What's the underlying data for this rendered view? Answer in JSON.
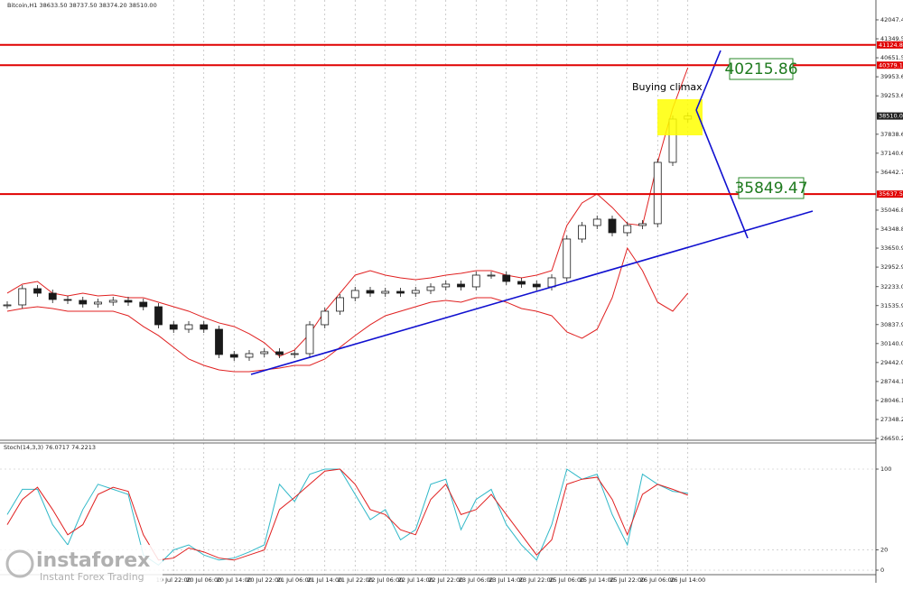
{
  "header": "Bitcoin,H1 38633.50 38737.50 38374.20 38510.00",
  "logo": {
    "name": "instaforex",
    "tagline": "Instant Forex Trading"
  },
  "chart_data": [
    {
      "type": "candlestick",
      "categories": [
        null,
        null,
        null,
        null,
        null,
        null,
        null,
        null,
        null,
        null,
        null,
        "19 Jul 22:00",
        null,
        "20 Jul 06:00",
        null,
        "20 Jul 14:00",
        null,
        "20 Jul 22:00",
        null,
        "21 Jul 06:00",
        null,
        "21 Jul 14:00",
        null,
        "21 Jul 22:00",
        null,
        "22 Jul 06:00",
        null,
        "22 Jul 14:00",
        null,
        "22 Jul 22:00",
        null,
        "23 Jul 06:00",
        null,
        "23 Jul 14:00",
        null,
        "23 Jul 22:00",
        null,
        "25 Jul 06:00",
        null,
        "25 Jul 14:00",
        null,
        "25 Jul 22:00",
        null,
        "26 Jul 06:00",
        null,
        "26 Jul 14:00"
      ],
      "closes": [
        31562,
        32159,
        31993,
        31761,
        31728,
        31595,
        31662,
        31728,
        31662,
        31495,
        30832,
        30666,
        30832,
        30666,
        29737,
        29637,
        29770,
        29837,
        29737,
        29770,
        30832,
        31330,
        31828,
        32093,
        31993,
        32059,
        31993,
        32093,
        32226,
        32325,
        32226,
        32657,
        32657,
        32425,
        32325,
        32226,
        32558,
        33985,
        34482,
        34715,
        34217,
        34482,
        34549,
        36805,
        38397,
        38510
      ],
      "upper_band": [
        31993,
        32325,
        32425,
        31993,
        31894,
        31993,
        31894,
        31927,
        31828,
        31828,
        31662,
        31496,
        31330,
        31098,
        30899,
        30766,
        30500,
        30169,
        29671,
        29903,
        30500,
        31330,
        31993,
        32657,
        32823,
        32657,
        32558,
        32491,
        32558,
        32657,
        32723,
        32823,
        32823,
        32657,
        32558,
        32657,
        32823,
        34482,
        35311,
        35643,
        35146,
        34549,
        34482,
        36805,
        38795,
        40288
      ],
      "lower_band": [
        31330,
        31429,
        31496,
        31429,
        31330,
        31330,
        31330,
        31330,
        31164,
        30766,
        30434,
        30003,
        29571,
        29339,
        29173,
        29107,
        29107,
        29173,
        29240,
        29339,
        29339,
        29571,
        30003,
        30434,
        30832,
        31164,
        31330,
        31496,
        31662,
        31728,
        31662,
        31828,
        31828,
        31662,
        31429,
        31330,
        31164,
        30567,
        30334,
        30666,
        31828,
        33652,
        32823,
        31662,
        31330,
        31993
      ],
      "band_color": "#e02020",
      "up_color": "#ffffff",
      "down_color": "#1a1a1a",
      "ylim": [
        26617,
        42777
      ],
      "yticks": [
        42047.45,
        {
          "value": 41349.5,
          "label": "41349.50"
        },
        40651.55,
        {
          "value": 39953.6,
          "label": "39953.60"
        },
        39253.65,
        {
          "value": 37838.6,
          "label": "37838.60"
        },
        37140.65,
        {
          "value": 36442.7,
          "label": "36442.70"
        },
        {
          "value": 35046.8,
          "label": "35046.80"
        },
        34348.85,
        {
          "value": 33650.9,
          "label": "33650.90"
        },
        32952.95,
        {
          "value": 32233,
          "label": "32233.00"
        },
        {
          "value": 31535.9,
          "label": "31535.90"
        },
        30837.95,
        {
          "value": 30140,
          "label": "30140.00"
        },
        29442.05,
        {
          "value": 28744.1,
          "label": "28744.10"
        },
        28046.15,
        {
          "value": 27348.2,
          "label": "27348.20"
        },
        26650.25
      ],
      "levels": [
        {
          "value": 41124.8,
          "label": "41124.80"
        },
        {
          "value": 40379.12,
          "label": "40379.12"
        },
        {
          "value": 35637.51,
          "label": "35637.51"
        }
      ],
      "level_color": "#e00000",
      "current_price": {
        "value": 38510,
        "label": "38510.00"
      },
      "annotations": {
        "climax": "Buying climax",
        "target_high": "40215.86",
        "target_low": "35849.47"
      },
      "grid": true
    },
    {
      "type": "line",
      "title": "Stoch(14,3,3) 76.0717 74.2213",
      "series": [
        {
          "color": "#30b8c8",
          "values": [
            55,
            80,
            80,
            45,
            25,
            60,
            85,
            80,
            75,
            15,
            5,
            20,
            25,
            15,
            10,
            12,
            18,
            25,
            85,
            68,
            95,
            100,
            100,
            75,
            50,
            60,
            30,
            40,
            85,
            90,
            40,
            70,
            80,
            45,
            25,
            10,
            45,
            100,
            90,
            95,
            55,
            25,
            95,
            85,
            78,
            76.0717
          ]
        },
        {
          "color": "#e02020",
          "values": [
            45,
            70,
            82,
            60,
            35,
            45,
            75,
            82,
            78,
            35,
            10,
            12,
            22,
            18,
            12,
            10,
            15,
            20,
            60,
            72,
            85,
            98,
            100,
            85,
            60,
            55,
            40,
            35,
            70,
            85,
            55,
            60,
            75,
            55,
            35,
            15,
            30,
            85,
            90,
            92,
            70,
            35,
            75,
            85,
            80,
            74.2213
          ]
        }
      ],
      "ylim": [
        0,
        100
      ],
      "yticks": [
        0,
        20,
        100
      ]
    }
  ]
}
